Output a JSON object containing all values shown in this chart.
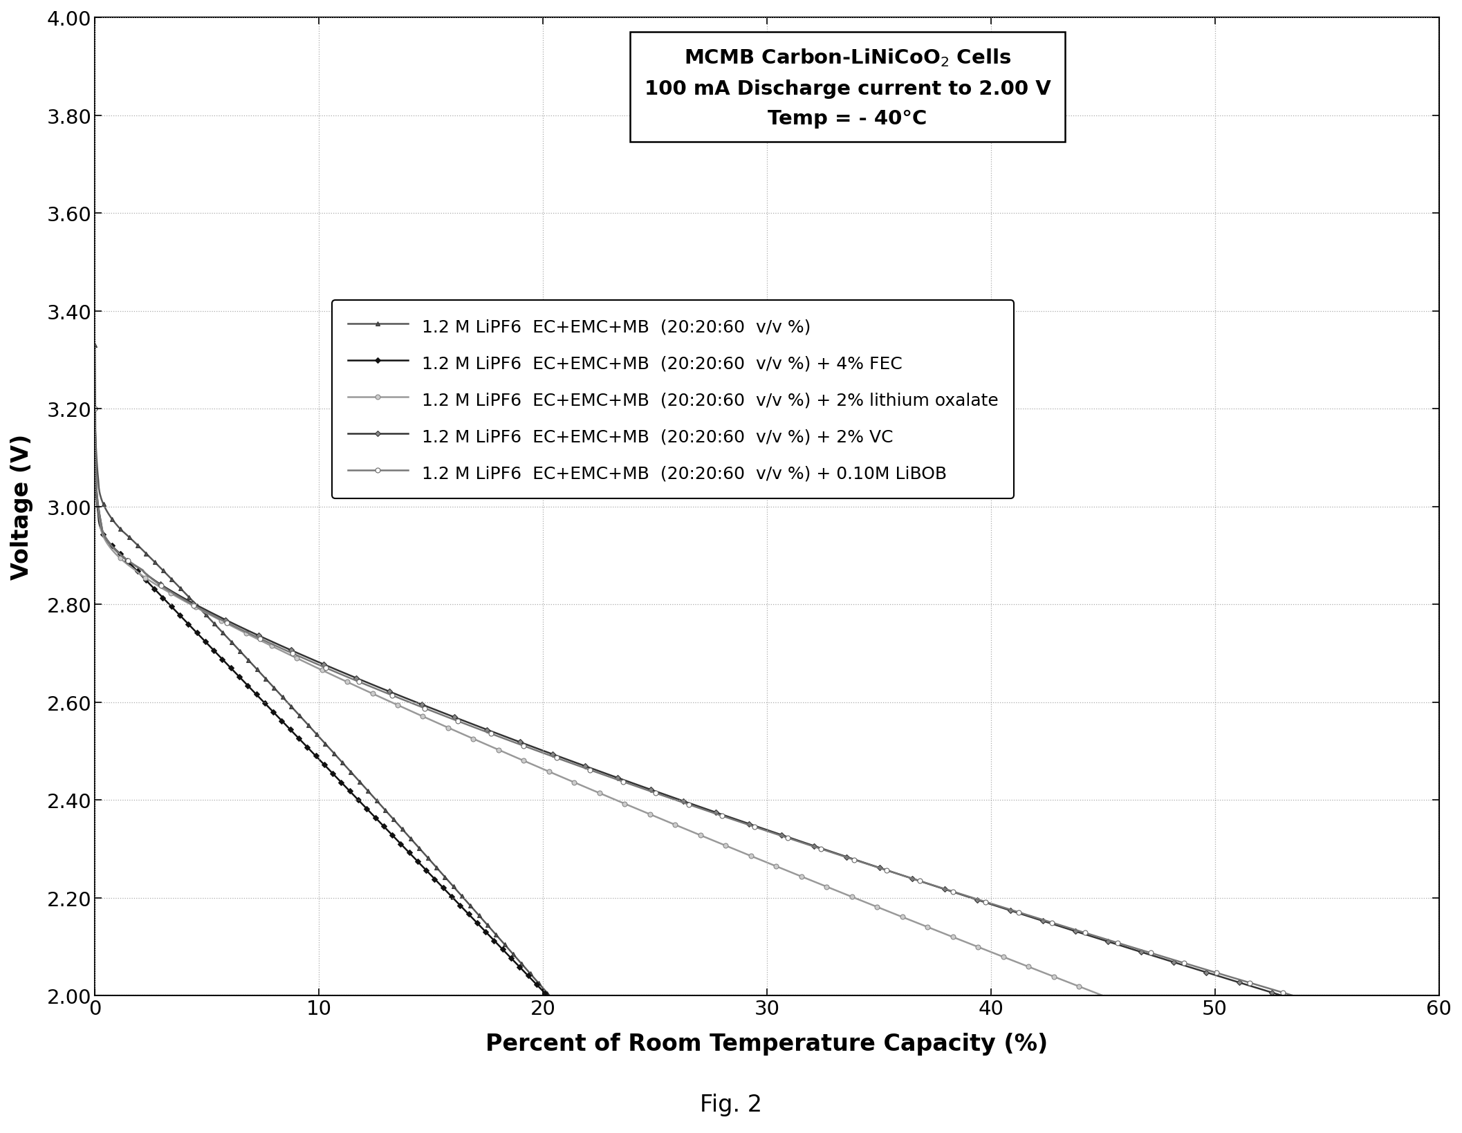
{
  "xlabel": "Percent of Room Temperature Capacity (%)",
  "ylabel": "Voltage (V)",
  "fig_label": "Fig. 2",
  "xlim": [
    0,
    60
  ],
  "ylim": [
    2.0,
    4.0
  ],
  "xticks": [
    0,
    10,
    20,
    30,
    40,
    50,
    60
  ],
  "yticks": [
    2.0,
    2.2,
    2.4,
    2.6,
    2.8,
    3.0,
    3.2,
    3.4,
    3.6,
    3.8,
    4.0
  ],
  "title_text": "MCMB Carbon-LiNiCoO$_2$ Cells\n100 mA Discharge current to 2.00 V\nTemp = - 40°C",
  "legend_entries": [
    "1.2 M LiPF6  EC+EMC+MB  (20:20:60  v/v %)",
    "1.2 M LiPF6  EC+EMC+MB  (20:20:60  v/v %) + 4% FEC",
    "1.2 M LiPF6  EC+EMC+MB  (20:20:60  v/v %) + 2% lithium oxalate",
    "1.2 M LiPF6  EC+EMC+MB  (20:20:60  v/v %) + 2% VC",
    "1.2 M LiPF6  EC+EMC+MB  (20:20:60  v/v %) + 0.10M LiBOB"
  ],
  "curves": [
    {
      "x_end": 20.3,
      "start_v": 3.33,
      "color": "#555555",
      "marker": "^",
      "ms": 5,
      "mfc": "#555555",
      "mec": "#333333",
      "markevery": 15,
      "lw": 1.8,
      "phase1_end": 0.008,
      "v1": 3.05,
      "phase2_end": 0.06,
      "v2": 2.95,
      "power": 1.05
    },
    {
      "x_end": 20.2,
      "start_v": 3.2,
      "color": "#111111",
      "marker": "D",
      "ms": 4,
      "mfc": "#111111",
      "mec": "#111111",
      "markevery": 15,
      "lw": 1.8,
      "phase1_end": 0.008,
      "v1": 2.98,
      "phase2_end": 0.06,
      "v2": 2.9,
      "power": 1.0
    },
    {
      "x_end": 45.0,
      "start_v": 3.2,
      "color": "#999999",
      "marker": "o",
      "ms": 5,
      "mfc": "#cccccc",
      "mec": "#888888",
      "markevery": 20,
      "lw": 1.8,
      "phase1_end": 0.005,
      "v1": 2.97,
      "phase2_end": 0.04,
      "v2": 2.87,
      "power": 0.88
    },
    {
      "x_end": 53.0,
      "start_v": 3.2,
      "color": "#333333",
      "marker": "D",
      "ms": 4,
      "mfc": "#888888",
      "mec": "#333333",
      "markevery": 22,
      "lw": 1.8,
      "phase1_end": 0.005,
      "v1": 2.97,
      "phase2_end": 0.04,
      "v2": 2.87,
      "power": 0.82
    },
    {
      "x_end": 53.5,
      "start_v": 3.2,
      "color": "#777777",
      "marker": "o",
      "ms": 5,
      "mfc": "#ffffff",
      "mec": "#666666",
      "markevery": 22,
      "lw": 1.8,
      "phase1_end": 0.005,
      "v1": 2.97,
      "phase2_end": 0.04,
      "v2": 2.87,
      "power": 0.8
    }
  ],
  "background_color": "#ffffff",
  "grid_color": "#aaaaaa"
}
